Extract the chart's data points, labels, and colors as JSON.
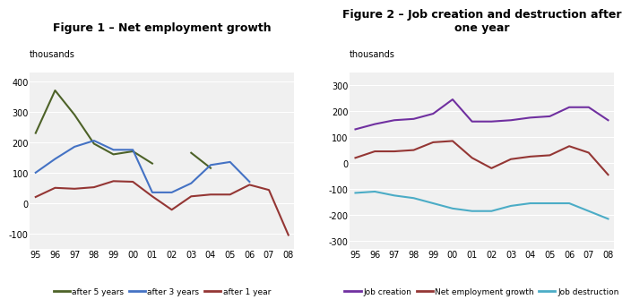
{
  "fig1_title": "Figure 1 – Net employment growth",
  "fig2_title": "Figure 2 – Job creation and destruction after\none year",
  "year_labels": [
    "95",
    "96",
    "97",
    "98",
    "99",
    "00",
    "01",
    "02",
    "03",
    "04",
    "05",
    "06",
    "07",
    "08"
  ],
  "fig1_after5": [
    230,
    370,
    290,
    195,
    160,
    170,
    130,
    null,
    165,
    115,
    null,
    null,
    null,
    null
  ],
  "fig1_after3": [
    100,
    145,
    185,
    205,
    175,
    175,
    35,
    35,
    65,
    125,
    135,
    70,
    null,
    null
  ],
  "fig1_after1": [
    20,
    50,
    47,
    52,
    72,
    70,
    22,
    -22,
    22,
    28,
    28,
    60,
    43,
    -105
  ],
  "fig1_ylim": [
    -150,
    430
  ],
  "fig1_yticks": [
    -100,
    0,
    100,
    200,
    300,
    400
  ],
  "fig1_ylabel": "thousands",
  "fig2_creation": [
    130,
    150,
    165,
    170,
    190,
    245,
    160,
    160,
    165,
    175,
    180,
    215,
    215,
    165
  ],
  "fig2_net": [
    20,
    45,
    45,
    50,
    80,
    85,
    20,
    -20,
    15,
    25,
    30,
    65,
    40,
    -45
  ],
  "fig2_destruction": [
    -115,
    -110,
    -125,
    -135,
    -155,
    -175,
    -185,
    -185,
    -165,
    -155,
    -155,
    -155,
    -185,
    -215
  ],
  "fig2_ylim": [
    -330,
    350
  ],
  "fig2_yticks": [
    -300,
    -200,
    -100,
    0,
    100,
    200,
    300
  ],
  "fig2_ylabel": "thousands",
  "color_after5": "#4d6228",
  "color_after3": "#4472c4",
  "color_after1": "#943634",
  "color_creation": "#7030a0",
  "color_net": "#943634",
  "color_destruction": "#4bacc6",
  "legend1_labels": [
    "after 5 years",
    "after 3 years",
    "after 1 year"
  ],
  "legend2_labels": [
    "Job creation",
    "Net employment growth",
    "Job destruction"
  ],
  "bg_color": "#f0f0f0"
}
